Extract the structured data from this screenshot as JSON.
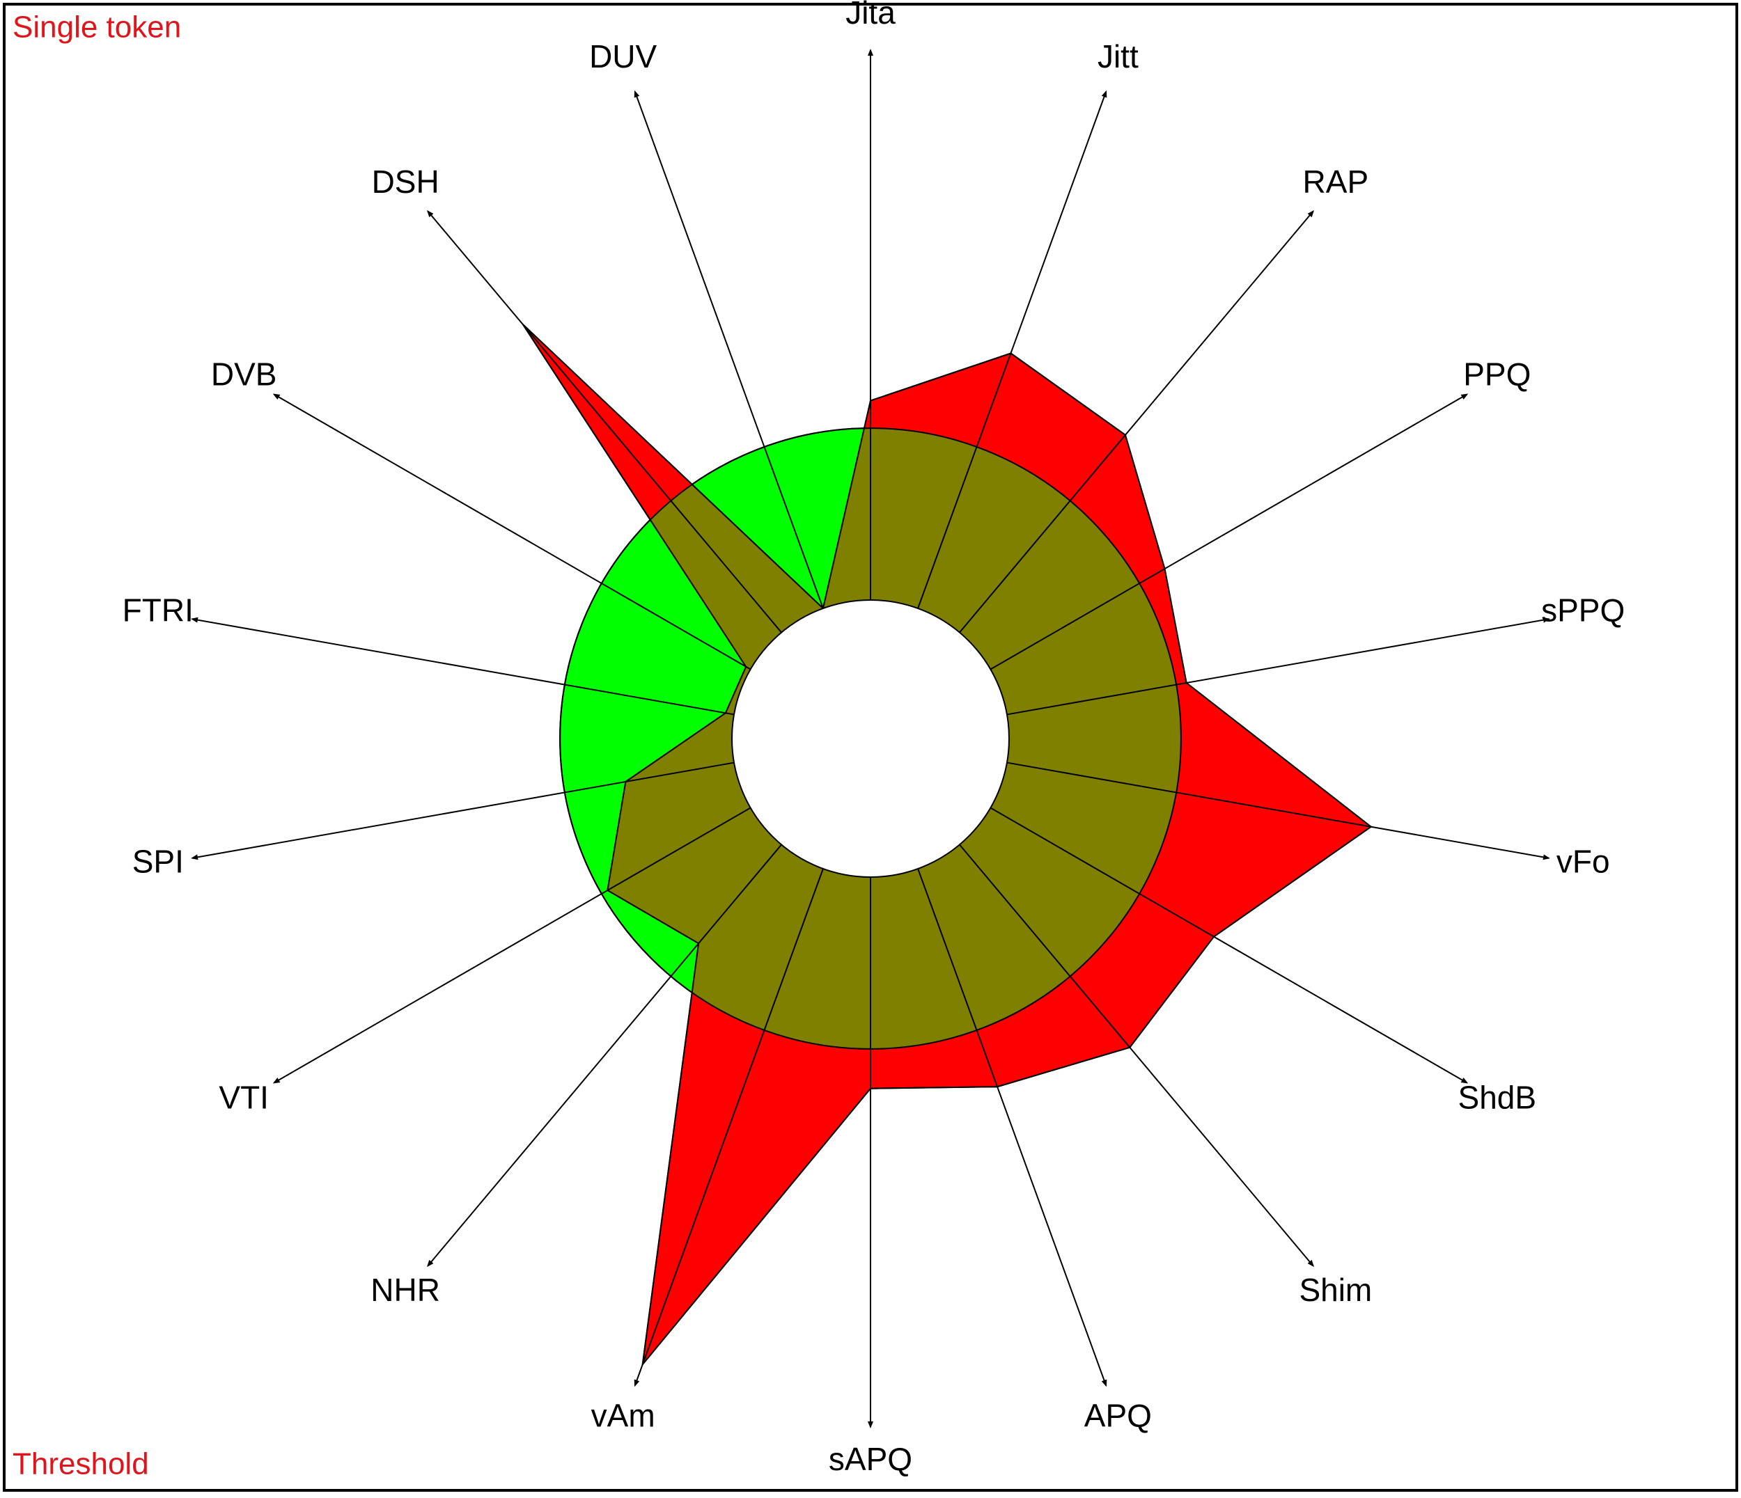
{
  "chart_data": {
    "type": "radar",
    "title": "Single token",
    "threshold_label": "Threshold",
    "categories": [
      "Jita",
      "Jitt",
      "RAP",
      "PPQ",
      "sPPQ",
      "vFo",
      "ShdB",
      "Shim",
      "APQ",
      "sAPQ",
      "vAm",
      "NHR",
      "VTI",
      "SPI",
      "FTRI",
      "DVB",
      "DSH",
      "DUV"
    ],
    "values": [
      1.16,
      1.58,
      1.5,
      1.17,
      1.06,
      2.15,
      1.5,
      1.54,
      1.35,
      1.23,
      3.07,
      0.75,
      0.96,
      0.64,
      0.05,
      0.03,
      2.34,
      0
    ],
    "ylim": [
      0,
      3.2
    ],
    "threshold": 1,
    "color": "#ff0000",
    "threshold_color": "#00ff00",
    "overlap_color": "#808000"
  }
}
